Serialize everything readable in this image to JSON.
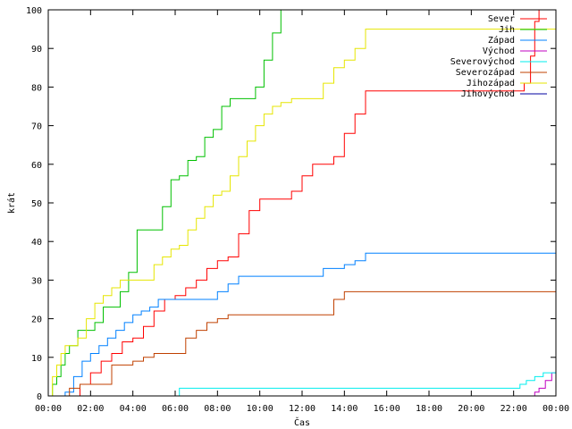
{
  "chart_data": {
    "type": "line",
    "xlabel": "Čas",
    "ylabel": "krát",
    "xlim": [
      0,
      24
    ],
    "ylim": [
      0,
      100
    ],
    "x_ticks": [
      {
        "v": 0,
        "label": "00:00"
      },
      {
        "v": 2,
        "label": "02:00"
      },
      {
        "v": 4,
        "label": "04:00"
      },
      {
        "v": 6,
        "label": "06:00"
      },
      {
        "v": 8,
        "label": "08:00"
      },
      {
        "v": 10,
        "label": "10:00"
      },
      {
        "v": 12,
        "label": "12:00"
      },
      {
        "v": 14,
        "label": "14:00"
      },
      {
        "v": 16,
        "label": "16:00"
      },
      {
        "v": 18,
        "label": "18:00"
      },
      {
        "v": 20,
        "label": "20:00"
      },
      {
        "v": 22,
        "label": "22:00"
      },
      {
        "v": 24,
        "label": "00:00"
      }
    ],
    "y_ticks": [
      {
        "v": 0,
        "label": "0"
      },
      {
        "v": 10,
        "label": "10"
      },
      {
        "v": 20,
        "label": "20"
      },
      {
        "v": 30,
        "label": "30"
      },
      {
        "v": 40,
        "label": "40"
      },
      {
        "v": 50,
        "label": "50"
      },
      {
        "v": 60,
        "label": "60"
      },
      {
        "v": 70,
        "label": "70"
      },
      {
        "v": 80,
        "label": "80"
      },
      {
        "v": 90,
        "label": "90"
      },
      {
        "v": 100,
        "label": "100"
      }
    ],
    "legend_position": "top-right",
    "series": [
      {
        "name": "Sever",
        "color": "#ff0000",
        "x": [
          0.9,
          1.5,
          2.0,
          2.5,
          3.0,
          3.5,
          4.0,
          4.5,
          5.0,
          5.5,
          6.0,
          6.5,
          7.0,
          7.5,
          8.0,
          8.5,
          9.0,
          9.5,
          10.0,
          10.5,
          11.0,
          11.5,
          12.0,
          12.5,
          13.0,
          13.5,
          14.0,
          14.5,
          15.0,
          15.5,
          16.0,
          17.0,
          18.0,
          19.0,
          20.0,
          21.0,
          22.0,
          22.5,
          22.8,
          23.0,
          23.2
        ],
        "y": [
          0,
          3,
          6,
          9,
          11,
          14,
          15,
          18,
          22,
          25,
          26,
          28,
          30,
          33,
          35,
          36,
          42,
          48,
          51,
          51,
          51,
          53,
          57,
          60,
          60,
          62,
          68,
          73,
          79,
          79,
          79,
          79,
          79,
          79,
          79,
          79,
          79,
          81,
          88,
          97,
          100
        ]
      },
      {
        "name": "Jih",
        "color": "#00c000",
        "x": [
          0.0,
          0.2,
          0.4,
          0.6,
          0.8,
          1.0,
          1.4,
          1.8,
          2.2,
          2.6,
          3.0,
          3.4,
          3.8,
          4.2,
          4.6,
          5.0,
          5.4,
          5.8,
          6.2,
          6.6,
          7.0,
          7.4,
          7.8,
          8.2,
          8.6,
          9.0,
          9.4,
          9.8,
          10.2,
          10.6,
          11.0
        ],
        "y": [
          0,
          3,
          5,
          8,
          11,
          13,
          17,
          17,
          19,
          23,
          23,
          27,
          32,
          43,
          43,
          43,
          49,
          56,
          57,
          61,
          62,
          67,
          69,
          75,
          77,
          77,
          77,
          80,
          87,
          94,
          100
        ]
      },
      {
        "name": "Západ",
        "color": "#0080ff",
        "x": [
          0.0,
          0.8,
          1.2,
          1.6,
          2.0,
          2.4,
          2.8,
          3.2,
          3.6,
          4.0,
          4.4,
          4.8,
          5.2,
          5.6,
          6.0,
          7.0,
          8.0,
          8.5,
          9.0,
          10.0,
          11.0,
          12.0,
          12.5,
          13.0,
          13.5,
          14.0,
          14.5,
          15.0,
          16.0,
          18.0,
          20.0,
          22.0,
          24.0
        ],
        "y": [
          0,
          1,
          5,
          9,
          11,
          13,
          15,
          17,
          19,
          21,
          22,
          23,
          25,
          25,
          25,
          25,
          27,
          29,
          31,
          31,
          31,
          31,
          31,
          33,
          33,
          34,
          35,
          37,
          37,
          37,
          37,
          37,
          37
        ]
      },
      {
        "name": "Východ",
        "color": "#c000c0",
        "x": [
          0.0,
          22.8,
          23.0,
          23.2,
          23.5,
          23.8,
          24.0
        ],
        "y": [
          0,
          0,
          1,
          2,
          4,
          6,
          7
        ]
      },
      {
        "name": "Severovýchod",
        "color": "#00eeee",
        "x": [
          0.0,
          6.0,
          6.2,
          10.0,
          14.0,
          18.0,
          22.0,
          22.3,
          22.6,
          23.0,
          23.4,
          23.8,
          24.0
        ],
        "y": [
          0,
          0,
          2,
          2,
          2,
          2,
          2,
          3,
          4,
          5,
          6,
          6,
          6
        ]
      },
      {
        "name": "Severozápad",
        "color": "#c04000",
        "x": [
          0.0,
          1.0,
          1.5,
          2.0,
          2.6,
          3.0,
          4.0,
          4.5,
          5.0,
          6.0,
          6.5,
          7.0,
          7.5,
          8.0,
          8.5,
          9.0,
          10.0,
          11.0,
          12.0,
          13.0,
          13.5,
          14.0,
          15.0,
          16.0,
          18.0,
          20.0,
          22.0,
          24.0
        ],
        "y": [
          0,
          2,
          3,
          3,
          3,
          8,
          9,
          10,
          11,
          11,
          15,
          17,
          19,
          20,
          21,
          21,
          21,
          21,
          21,
          21,
          25,
          27,
          27,
          27,
          27,
          27,
          27,
          27
        ]
      },
      {
        "name": "Jihozápad",
        "color": "#e6e600",
        "x": [
          0.0,
          0.2,
          0.4,
          0.6,
          0.8,
          1.0,
          1.4,
          1.8,
          2.2,
          2.6,
          3.0,
          3.4,
          3.8,
          4.2,
          4.6,
          5.0,
          5.4,
          5.8,
          6.2,
          6.6,
          7.0,
          7.4,
          7.8,
          8.2,
          8.6,
          9.0,
          9.4,
          9.8,
          10.2,
          10.6,
          11.0,
          11.5,
          12.0,
          13.0,
          13.5,
          14.0,
          14.5,
          15.0,
          16.0,
          18.0,
          20.0,
          22.0,
          24.0
        ],
        "y": [
          0,
          5,
          8,
          11,
          13,
          13,
          15,
          20,
          24,
          26,
          28,
          30,
          30,
          30,
          30,
          34,
          36,
          38,
          39,
          43,
          46,
          49,
          52,
          53,
          57,
          62,
          66,
          70,
          73,
          75,
          76,
          77,
          77,
          81,
          85,
          87,
          90,
          95,
          95,
          95,
          95,
          95,
          95
        ]
      },
      {
        "name": "Jihovýchod",
        "color": "#0000a0",
        "x": [
          0.0,
          24.0
        ],
        "y": [
          0,
          0
        ]
      }
    ]
  }
}
